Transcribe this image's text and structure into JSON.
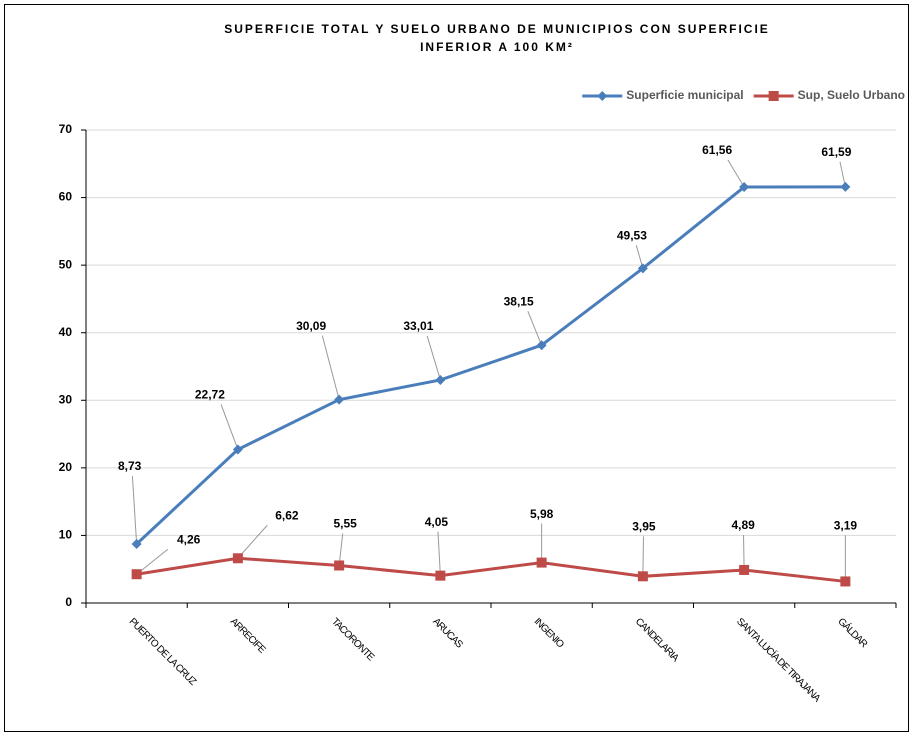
{
  "chart_data": {
    "type": "line",
    "title": [
      "SUPERFICIE TOTAL Y SUELO URBANO DE MUNICIPIOS CON SUPERFICIE",
      "INFERIOR A 100 KM²"
    ],
    "categories": [
      "PUERTO DE LA CRUZ",
      "ARRECIFE",
      "TACORONTE",
      "ARUCAS",
      "INGENIO",
      "CANDELARIA",
      "SANTA LUCÍA DE TIRAJANA",
      "GÁLDAR"
    ],
    "series": [
      {
        "name": "Superficie municipal",
        "color": "#4a7ebb",
        "marker": "diamond",
        "values": [
          8.73,
          22.72,
          30.09,
          33.01,
          38.15,
          49.53,
          61.56,
          61.59
        ],
        "value_labels": [
          "8,73",
          "22,72",
          "30,09",
          "33,01",
          "38,15",
          "49,53",
          "61,56",
          "61,59"
        ]
      },
      {
        "name": "Sup, Suelo Urbano",
        "color": "#be4b48",
        "marker": "square",
        "values": [
          4.26,
          6.62,
          5.55,
          4.05,
          5.98,
          3.95,
          4.89,
          3.19
        ],
        "value_labels": [
          "4,26",
          "6,62",
          "5,55",
          "4,05",
          "5,98",
          "3,95",
          "4,89",
          "3,19"
        ]
      }
    ],
    "ylim": [
      0,
      70
    ],
    "yticks": [
      0,
      10,
      20,
      30,
      40,
      50,
      60,
      70
    ],
    "grid": true,
    "legend": "top-right"
  }
}
